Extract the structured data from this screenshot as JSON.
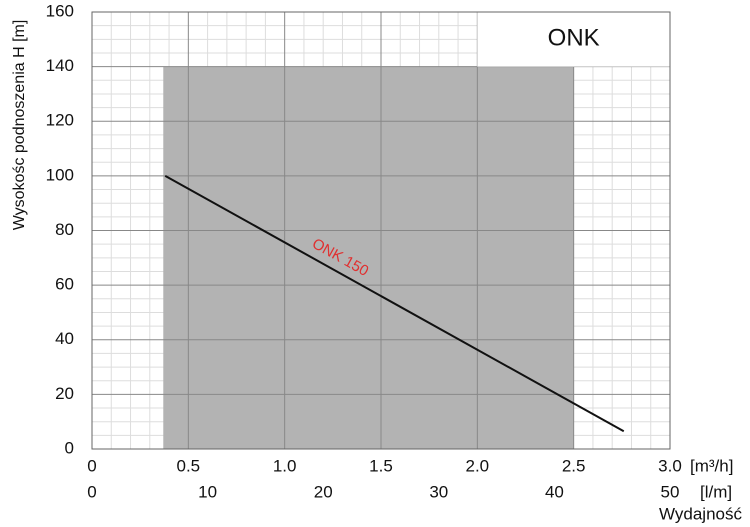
{
  "chart_data": {
    "type": "line",
    "title": "ONK",
    "ylabel": "Wysokośc podnoszenia H [m]",
    "xlabel": "Wydajność",
    "x_unit": "[m³/h]",
    "x2_unit": "[l/m]",
    "xlim": [
      0,
      3
    ],
    "xticks": [
      0,
      0.5,
      {
        "value": 1,
        "label": "1.0"
      },
      1.5,
      {
        "value": 2,
        "label": "2.0"
      },
      2.5,
      {
        "value": 3,
        "label": "3.0"
      }
    ],
    "x2lim": [
      0,
      50
    ],
    "x2ticks": [
      0,
      10,
      20,
      30,
      40,
      50
    ],
    "ylim": [
      0,
      160
    ],
    "yticks": [
      0,
      20,
      40,
      60,
      80,
      100,
      120,
      140,
      160
    ],
    "grid": true,
    "shaded_region": {
      "x": [
        0.37,
        2.5
      ],
      "y": [
        0,
        140
      ],
      "color": "#b3b3b3"
    },
    "series": [
      {
        "name": "ONK 150",
        "color": "#111111",
        "label_color": "#e03030",
        "x": [
          0.38,
          2.76
        ],
        "values": [
          100,
          6.5
        ]
      }
    ]
  }
}
